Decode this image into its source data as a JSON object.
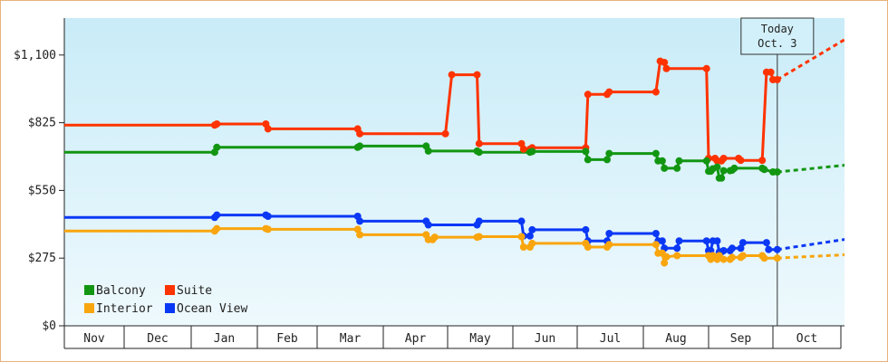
{
  "chart_data": {
    "type": "line",
    "title": "",
    "xlabel": "",
    "ylabel": "",
    "ylim": [
      0,
      1250
    ],
    "y_ticks": [
      0,
      275,
      550,
      825,
      1100
    ],
    "y_tick_labels": [
      "$0",
      "$275",
      "$550",
      "$825",
      "$1,100"
    ],
    "x_months": [
      "Nov",
      "Dec",
      "Jan",
      "Feb",
      "Mar",
      "Apr",
      "May",
      "Jun",
      "Jul",
      "Aug",
      "Sep",
      "Oct"
    ],
    "today": {
      "line1": "Today",
      "line2": "Oct. 3",
      "date": "2015-10-03"
    },
    "background_gradient": [
      "#c9ecf8",
      "#eef9fd"
    ],
    "legend_placement": "bottom-left",
    "series": [
      {
        "name": "Suite",
        "color": "#ff3300",
        "values": [
          [
            "2014-10-28",
            815
          ],
          [
            "2015-01-12",
            815
          ],
          [
            "2015-01-13",
            820
          ],
          [
            "2015-02-05",
            820
          ],
          [
            "2015-02-06",
            800
          ],
          [
            "2015-03-20",
            800
          ],
          [
            "2015-03-21",
            780
          ],
          [
            "2015-04-30",
            780
          ],
          [
            "2015-05-03",
            1020
          ],
          [
            "2015-05-15",
            1020
          ],
          [
            "2015-05-16",
            740
          ],
          [
            "2015-06-05",
            740
          ],
          [
            "2015-06-06",
            718
          ],
          [
            "2015-06-09",
            718
          ],
          [
            "2015-06-10",
            723
          ],
          [
            "2015-07-05",
            723
          ],
          [
            "2015-07-06",
            940
          ],
          [
            "2015-07-15",
            940
          ],
          [
            "2015-07-16",
            950
          ],
          [
            "2015-08-07",
            950
          ],
          [
            "2015-08-09",
            1075
          ],
          [
            "2015-08-11",
            1070
          ],
          [
            "2015-08-12",
            1045
          ],
          [
            "2015-08-31",
            1045
          ],
          [
            "2015-09-01",
            680
          ],
          [
            "2015-09-04",
            680
          ],
          [
            "2015-09-05",
            670
          ],
          [
            "2015-09-07",
            670
          ],
          [
            "2015-09-08",
            680
          ],
          [
            "2015-09-15",
            680
          ],
          [
            "2015-09-16",
            672
          ],
          [
            "2015-09-26",
            672
          ],
          [
            "2015-09-28",
            1030
          ],
          [
            "2015-09-30",
            1030
          ],
          [
            "2015-10-01",
            1000
          ],
          [
            "2015-10-03",
            1000
          ]
        ],
        "forecast": [
          [
            "2015-10-03",
            1000
          ],
          [
            "2015-11-06",
            1180
          ]
        ]
      },
      {
        "name": "Balcony",
        "color": "#129612",
        "values": [
          [
            "2014-10-28",
            705
          ],
          [
            "2015-01-12",
            705
          ],
          [
            "2015-01-13",
            725
          ],
          [
            "2015-03-20",
            725
          ],
          [
            "2015-03-21",
            730
          ],
          [
            "2015-04-21",
            730
          ],
          [
            "2015-04-22",
            710
          ],
          [
            "2015-05-15",
            710
          ],
          [
            "2015-05-16",
            705
          ],
          [
            "2015-06-09",
            705
          ],
          [
            "2015-06-10",
            708
          ],
          [
            "2015-07-05",
            708
          ],
          [
            "2015-07-06",
            675
          ],
          [
            "2015-07-15",
            675
          ],
          [
            "2015-07-16",
            700
          ],
          [
            "2015-08-07",
            700
          ],
          [
            "2015-08-08",
            670
          ],
          [
            "2015-08-10",
            670
          ],
          [
            "2015-08-11",
            640
          ],
          [
            "2015-08-17",
            640
          ],
          [
            "2015-08-18",
            670
          ],
          [
            "2015-08-31",
            670
          ],
          [
            "2015-09-01",
            628
          ],
          [
            "2015-09-02",
            628
          ],
          [
            "2015-09-03",
            638
          ],
          [
            "2015-09-05",
            645
          ],
          [
            "2015-09-06",
            600
          ],
          [
            "2015-09-07",
            600
          ],
          [
            "2015-09-08",
            630
          ],
          [
            "2015-09-11",
            630
          ],
          [
            "2015-09-12",
            632
          ],
          [
            "2015-09-13",
            640
          ],
          [
            "2015-09-26",
            640
          ],
          [
            "2015-09-27",
            635
          ],
          [
            "2015-10-01",
            625
          ],
          [
            "2015-10-03",
            625
          ]
        ],
        "forecast": [
          [
            "2015-10-03",
            625
          ],
          [
            "2015-11-06",
            655
          ]
        ]
      },
      {
        "name": "Ocean View",
        "color": "#0b38f5",
        "values": [
          [
            "2014-10-28",
            440
          ],
          [
            "2015-01-12",
            440
          ],
          [
            "2015-01-13",
            450
          ],
          [
            "2015-02-05",
            450
          ],
          [
            "2015-02-06",
            445
          ],
          [
            "2015-03-20",
            445
          ],
          [
            "2015-03-21",
            425
          ],
          [
            "2015-04-21",
            425
          ],
          [
            "2015-04-22",
            410
          ],
          [
            "2015-05-15",
            410
          ],
          [
            "2015-05-16",
            425
          ],
          [
            "2015-06-05",
            425
          ],
          [
            "2015-06-06",
            365
          ],
          [
            "2015-06-09",
            365
          ],
          [
            "2015-06-10",
            390
          ],
          [
            "2015-07-05",
            390
          ],
          [
            "2015-07-06",
            345
          ],
          [
            "2015-07-15",
            345
          ],
          [
            "2015-07-16",
            375
          ],
          [
            "2015-08-07",
            375
          ],
          [
            "2015-08-08",
            345
          ],
          [
            "2015-08-10",
            345
          ],
          [
            "2015-08-11",
            315
          ],
          [
            "2015-08-17",
            315
          ],
          [
            "2015-08-18",
            345
          ],
          [
            "2015-08-31",
            345
          ],
          [
            "2015-09-01",
            305
          ],
          [
            "2015-09-02",
            305
          ],
          [
            "2015-09-03",
            345
          ],
          [
            "2015-09-05",
            345
          ],
          [
            "2015-09-06",
            300
          ],
          [
            "2015-09-07",
            300
          ],
          [
            "2015-09-08",
            305
          ],
          [
            "2015-09-11",
            305
          ],
          [
            "2015-09-12",
            315
          ],
          [
            "2015-09-16",
            315
          ],
          [
            "2015-09-17",
            338
          ],
          [
            "2015-09-28",
            338
          ],
          [
            "2015-09-29",
            310
          ],
          [
            "2015-10-03",
            310
          ]
        ],
        "forecast": [
          [
            "2015-10-03",
            310
          ],
          [
            "2015-11-06",
            355
          ]
        ]
      },
      {
        "name": "Interior",
        "color": "#f9a50d",
        "values": [
          [
            "2014-10-28",
            385
          ],
          [
            "2015-01-12",
            385
          ],
          [
            "2015-01-13",
            395
          ],
          [
            "2015-02-05",
            395
          ],
          [
            "2015-02-06",
            392
          ],
          [
            "2015-03-20",
            392
          ],
          [
            "2015-03-21",
            370
          ],
          [
            "2015-04-21",
            370
          ],
          [
            "2015-04-22",
            350
          ],
          [
            "2015-04-24",
            350
          ],
          [
            "2015-04-25",
            360
          ],
          [
            "2015-05-15",
            360
          ],
          [
            "2015-05-16",
            362
          ],
          [
            "2015-06-05",
            362
          ],
          [
            "2015-06-06",
            320
          ],
          [
            "2015-06-09",
            320
          ],
          [
            "2015-06-10",
            335
          ],
          [
            "2015-07-05",
            335
          ],
          [
            "2015-07-06",
            320
          ],
          [
            "2015-07-15",
            320
          ],
          [
            "2015-07-16",
            330
          ],
          [
            "2015-08-07",
            330
          ],
          [
            "2015-08-08",
            295
          ],
          [
            "2015-08-10",
            295
          ],
          [
            "2015-08-11",
            255
          ],
          [
            "2015-08-12",
            280
          ],
          [
            "2015-08-17",
            285
          ],
          [
            "2015-09-01",
            285
          ],
          [
            "2015-09-02",
            270
          ],
          [
            "2015-09-03",
            285
          ],
          [
            "2015-09-05",
            270
          ],
          [
            "2015-09-06",
            285
          ],
          [
            "2015-09-08",
            270
          ],
          [
            "2015-09-11",
            270
          ],
          [
            "2015-09-12",
            278
          ],
          [
            "2015-09-16",
            278
          ],
          [
            "2015-09-17",
            285
          ],
          [
            "2015-09-26",
            285
          ],
          [
            "2015-09-27",
            275
          ],
          [
            "2015-10-03",
            275
          ]
        ],
        "forecast": [
          [
            "2015-10-03",
            275
          ],
          [
            "2015-11-06",
            290
          ]
        ]
      }
    ],
    "legend": [
      {
        "name": "Balcony",
        "color": "#129612"
      },
      {
        "name": "Suite",
        "color": "#ff3300"
      },
      {
        "name": "Interior",
        "color": "#f9a50d"
      },
      {
        "name": "Ocean View",
        "color": "#0b38f5"
      }
    ]
  }
}
